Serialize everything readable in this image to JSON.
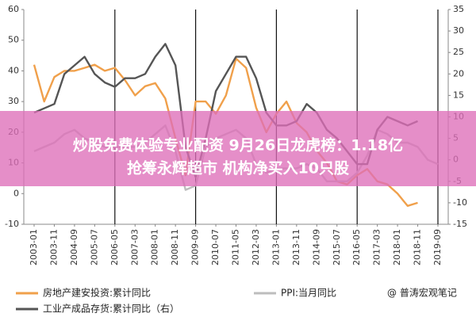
{
  "chart_data": {
    "type": "line",
    "categories": [
      "2003-01",
      null,
      "2003-11",
      null,
      "2004-09",
      null,
      "2005-07",
      null,
      "2006-05",
      null,
      "2007-03",
      null,
      "2008-01",
      null,
      "2008-11",
      null,
      "2009-09",
      null,
      "2010-07",
      null,
      "2011-05",
      null,
      "2012-03",
      null,
      "2013-01",
      null,
      "2013-11",
      null,
      "2014-09",
      null,
      "2015-07",
      null,
      "2016-05",
      null,
      "2017-03",
      null,
      "2018-01",
      null,
      "2018-11",
      null,
      "2019-09"
    ],
    "series": [
      {
        "name": "房地产建安投资:累计同比",
        "color": "#f0a04b",
        "values": [
          42,
          30,
          38,
          40,
          40,
          41,
          42,
          40,
          41,
          37,
          32,
          35,
          36,
          31,
          18,
          6,
          30,
          30,
          26,
          32,
          44,
          41,
          28,
          20,
          26,
          30,
          23,
          20,
          14,
          10,
          4,
          3,
          6,
          8,
          4,
          3,
          0,
          -4,
          -3,
          null,
          null
        ]
      },
      {
        "name": "PPI:当月同比",
        "color": "#bdbdbd",
        "axis": "y2",
        "values": [
          2,
          3,
          4,
          6,
          7,
          5,
          4,
          3,
          3,
          3,
          3,
          4,
          6,
          8,
          2,
          -7,
          -6,
          3,
          5,
          6,
          7,
          5,
          -1,
          -3,
          -2,
          -2,
          -2,
          -1,
          -2,
          -5,
          -5,
          -5,
          -3,
          1,
          7,
          6,
          4,
          4,
          3,
          0,
          -1
        ]
      },
      {
        "name": "工业产成品存货:累计同比（右）",
        "color": "#555555",
        "axis": "y2",
        "values": [
          11,
          12,
          13,
          20,
          22,
          24,
          20,
          18,
          17,
          19,
          19,
          20,
          24,
          27,
          22,
          3,
          -4,
          5,
          16,
          20,
          24,
          24,
          19,
          11,
          8,
          8,
          9,
          13,
          11,
          7,
          5,
          2,
          -1,
          -1,
          7,
          10,
          9,
          8,
          9,
          null,
          null
        ]
      }
    ],
    "ylim": [
      -10,
      60
    ],
    "yticks": [
      -10,
      0,
      10,
      20,
      30,
      40,
      50,
      60
    ],
    "y2lim": [
      -15,
      35
    ],
    "y2ticks": [
      -15,
      -10,
      -5,
      0,
      5,
      10,
      15,
      20,
      25,
      30,
      35
    ],
    "grid": false
  },
  "banner": [
    "炒股免费体验专业配资 9月26日龙虎榜：1.18亿",
    "抢筹永辉超市 机构净买入10只股"
  ],
  "watermark": "@ 普涛宏观笔记"
}
